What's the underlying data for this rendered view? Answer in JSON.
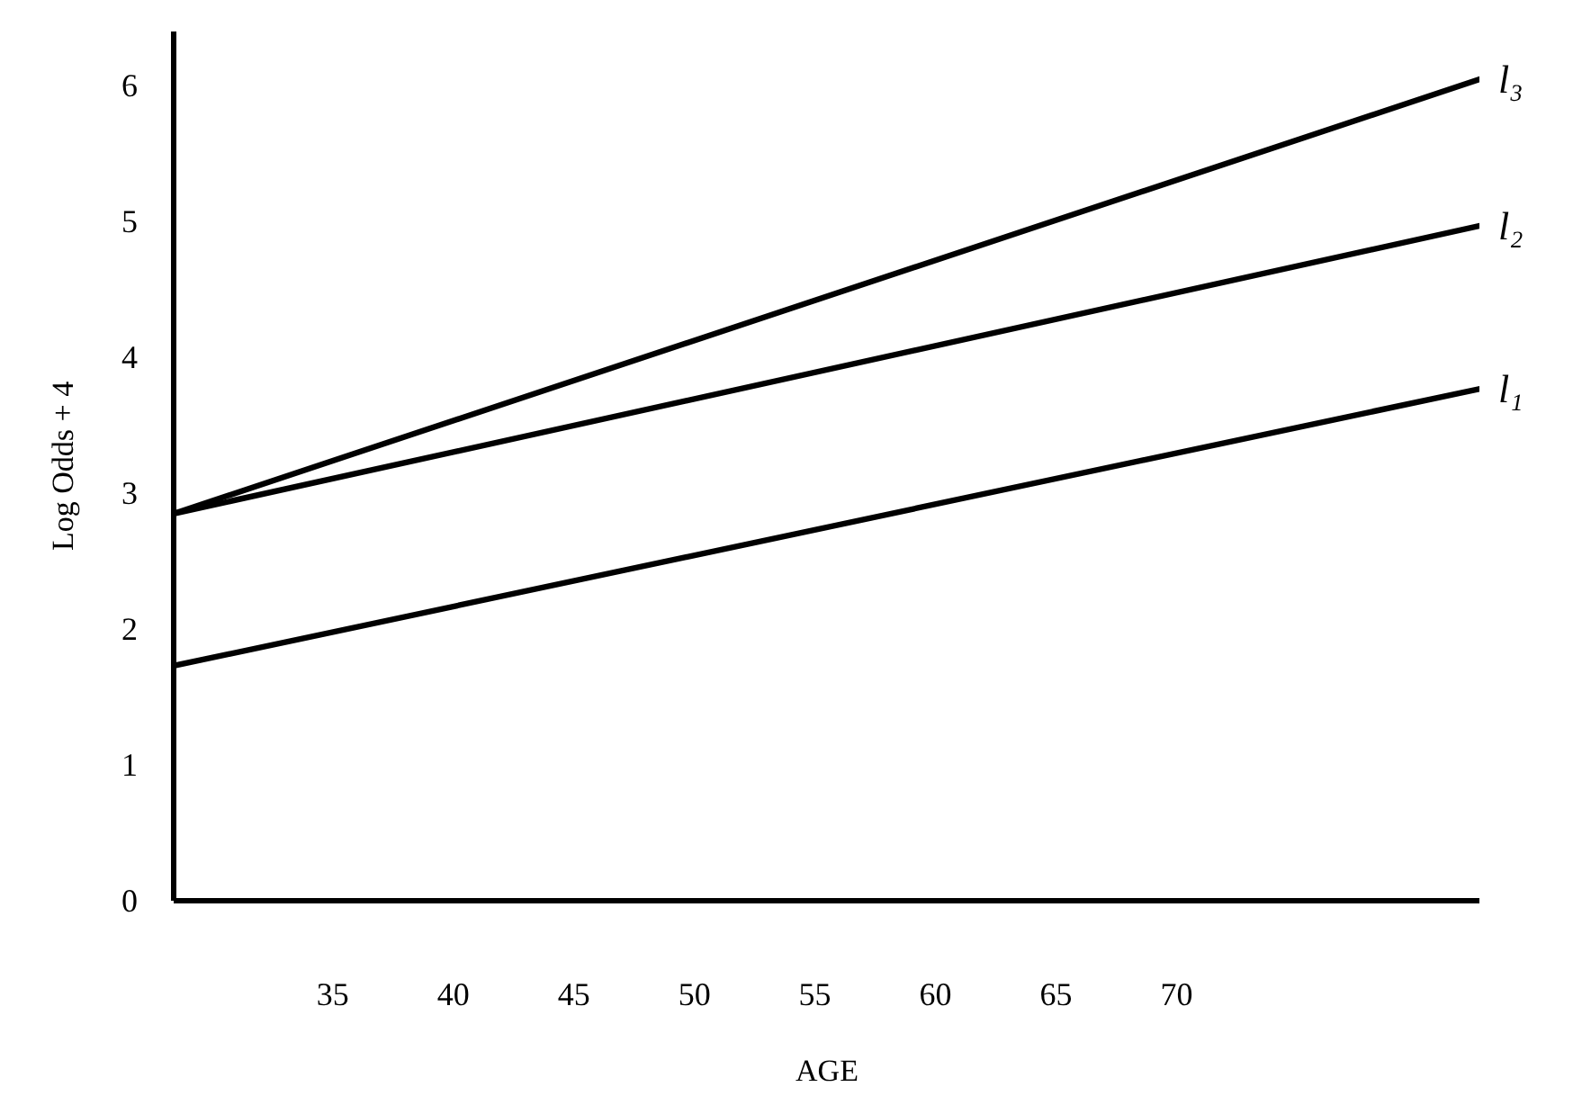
{
  "chart_data": {
    "type": "line",
    "xlabel": "AGE",
    "ylabel": "Log Odds + 4",
    "xlim": [
      28.4,
      82.6
    ],
    "ylim": [
      0,
      6.4
    ],
    "xticks": [
      35,
      40,
      45,
      50,
      55,
      60,
      65,
      70
    ],
    "yticks": [
      0,
      1,
      2,
      3,
      4,
      5,
      6
    ],
    "grid": false,
    "line_style": "solid",
    "x": [
      28.4,
      82.6
    ],
    "series": [
      {
        "name": "l₁",
        "color": "#000000",
        "values": [
          1.73,
          3.77
        ]
      },
      {
        "name": "l₂",
        "color": "#000000",
        "values": [
          2.85,
          4.97
        ]
      },
      {
        "name": "l₃",
        "color": "#000000",
        "values": [
          2.85,
          6.05
        ]
      }
    ]
  }
}
